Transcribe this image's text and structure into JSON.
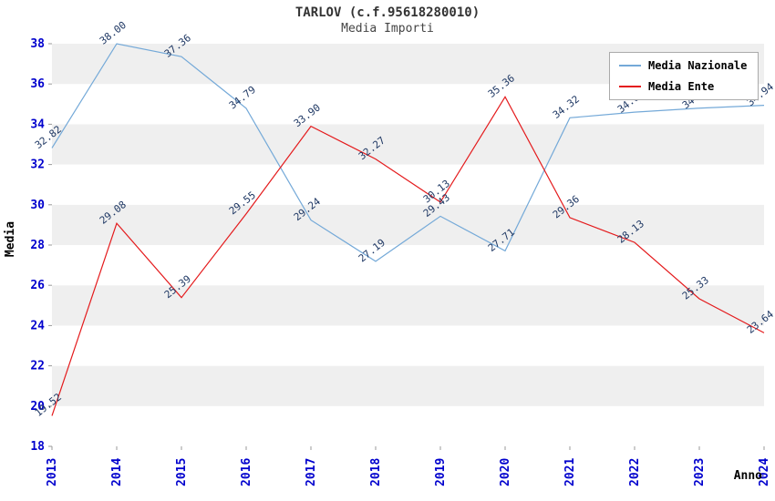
{
  "header": {
    "title": "TARLOV (c.f.95618280010)",
    "subtitle": "Media Importi"
  },
  "axis": {
    "x_label": "Anno",
    "y_label": "Media",
    "tick_color": "#0000cd",
    "y_ticks": [
      18,
      20,
      22,
      24,
      26,
      28,
      30,
      32,
      34,
      36,
      38
    ]
  },
  "legend": [
    {
      "label": "Media Nazionale",
      "color": "#74a9d8"
    },
    {
      "label": "Media Ente",
      "color": "#e41a1c"
    }
  ],
  "chart_data": {
    "type": "line",
    "title": "TARLOV (c.f.95618280010)",
    "subtitle": "Media Importi",
    "xlabel": "Anno",
    "ylabel": "Media",
    "ylim": [
      18,
      38
    ],
    "ytick_step": 2,
    "grid": false,
    "legend_position": "top-right",
    "band_colors": [
      "#ffffff",
      "#efefef"
    ],
    "point_label_color": "#1f3864",
    "categories": [
      "2013",
      "2014",
      "2015",
      "2016",
      "2017",
      "2018",
      "2019",
      "2020",
      "2021",
      "2022",
      "2023",
      "2024"
    ],
    "series": [
      {
        "name": "Media Nazionale",
        "color": "#74a9d8",
        "values": [
          32.82,
          38.0,
          37.36,
          34.79,
          29.24,
          27.19,
          29.43,
          27.71,
          34.32,
          34.6,
          34.8,
          34.94
        ],
        "labels": [
          "32.82",
          "38.00",
          "37.36",
          "34.79",
          "29.24",
          "27.19",
          "29.43",
          "27.71",
          "34.32",
          "34.60",
          "34.80",
          "34.94"
        ]
      },
      {
        "name": "Media Ente",
        "color": "#e41a1c",
        "values": [
          19.52,
          29.08,
          25.39,
          29.55,
          33.9,
          32.27,
          30.13,
          35.36,
          29.36,
          28.13,
          25.33,
          23.64
        ],
        "labels": [
          "19.52",
          "29.08",
          "25.39",
          "29.55",
          "33.90",
          "32.27",
          "30.13",
          "35.36",
          "29.36",
          "28.13",
          "25.33",
          "23.64"
        ]
      }
    ]
  }
}
